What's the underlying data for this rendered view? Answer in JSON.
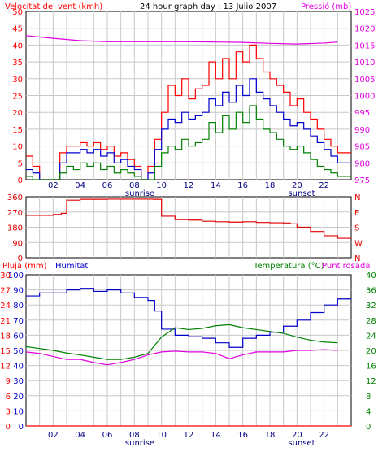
{
  "colors": {
    "background": "#ffffff",
    "grid": "#c8c8c8",
    "frame": "#000000",
    "wind_speed": "#ff0000",
    "wind_avg": "#0000cc",
    "wind_gust": "#008000",
    "pressure": "#e000e0",
    "direction": "#e00000",
    "rain": "#ff0000",
    "humidity": "#0000cc",
    "temperature": "#008000",
    "dewpoint": "#e000e0"
  },
  "header": {
    "wind_label": "Velocitat del vent (kmh)",
    "title": "24 hour graph day : 13 Julio 2007",
    "pressure_label": "Pressió (mb)"
  },
  "x_axis": {
    "hour_labels": [
      "02",
      "04",
      "06",
      "08",
      "10",
      "12",
      "14",
      "16",
      "18",
      "20",
      "22"
    ],
    "sunrise_label": "sunrise",
    "sunset_label": "sunset"
  },
  "chart_data": [
    {
      "type": "line",
      "name": "wind",
      "xlabel": "",
      "ylabel": "Velocitat del vent (kmh)",
      "y2label": "Pressió (mb)",
      "xlim": [
        0,
        24
      ],
      "ylim": [
        0,
        50
      ],
      "y2lim": [
        975,
        1025
      ],
      "y_ticks": [
        0,
        5,
        10,
        15,
        20,
        25,
        30,
        35,
        40,
        45,
        50
      ],
      "y2_ticks": [
        975,
        980,
        985,
        990,
        995,
        1000,
        1005,
        1010,
        1015,
        1020,
        1025
      ],
      "grid": true,
      "series": [
        {
          "key": "speed_max",
          "axis": "left",
          "x": [
            0,
            0.5,
            1,
            1.5,
            2,
            2.5,
            3,
            3.5,
            4,
            4.5,
            5,
            5.5,
            6,
            6.5,
            7,
            7.5,
            8,
            8.5,
            9,
            9.5,
            10,
            10.5,
            11,
            11.5,
            12,
            12.5,
            13,
            13.5,
            14,
            14.5,
            15,
            15.5,
            16,
            16.5,
            17,
            17.5,
            18,
            18.5,
            19,
            19.5,
            20,
            20.5,
            21,
            21.5,
            22,
            22.5,
            23
          ],
          "values": [
            7,
            4,
            0,
            0,
            0,
            8,
            10,
            10,
            11,
            10,
            11,
            9,
            10,
            7,
            8,
            6,
            4,
            0,
            4,
            12,
            20,
            28,
            25,
            30,
            24,
            27,
            28,
            35,
            30,
            36,
            30,
            38,
            35,
            40,
            36,
            32,
            30,
            28,
            26,
            22,
            24,
            20,
            18,
            15,
            12,
            10,
            8
          ]
        },
        {
          "key": "speed_avg",
          "axis": "left",
          "x": [
            0,
            0.5,
            1,
            1.5,
            2,
            2.5,
            3,
            3.5,
            4,
            4.5,
            5,
            5.5,
            6,
            6.5,
            7,
            7.5,
            8,
            8.5,
            9,
            9.5,
            10,
            10.5,
            11,
            11.5,
            12,
            12.5,
            13,
            13.5,
            14,
            14.5,
            15,
            15.5,
            16,
            16.5,
            17,
            17.5,
            18,
            18.5,
            19,
            19.5,
            20,
            20.5,
            21,
            21.5,
            22,
            22.5,
            23
          ],
          "values": [
            3,
            2,
            0,
            0,
            0,
            5,
            8,
            8,
            9,
            8,
            9,
            7,
            8,
            5,
            6,
            4,
            3,
            0,
            2,
            9,
            15,
            18,
            17,
            20,
            18,
            19,
            20,
            24,
            22,
            26,
            23,
            28,
            25,
            30,
            26,
            24,
            22,
            20,
            18,
            16,
            17,
            15,
            13,
            11,
            9,
            7,
            5
          ]
        },
        {
          "key": "speed_min",
          "axis": "left",
          "x": [
            0,
            0.5,
            1,
            1.5,
            2,
            2.5,
            3,
            3.5,
            4,
            4.5,
            5,
            5.5,
            6,
            6.5,
            7,
            7.5,
            8,
            8.5,
            9,
            9.5,
            10,
            10.5,
            11,
            11.5,
            12,
            12.5,
            13,
            13.5,
            14,
            14.5,
            15,
            15.5,
            16,
            16.5,
            17,
            17.5,
            18,
            18.5,
            19,
            19.5,
            20,
            20.5,
            21,
            21.5,
            22,
            22.5,
            23
          ],
          "values": [
            1,
            0,
            0,
            0,
            0,
            2,
            4,
            3,
            5,
            4,
            5,
            3,
            4,
            2,
            3,
            2,
            1,
            0,
            0,
            4,
            8,
            10,
            9,
            12,
            10,
            11,
            12,
            17,
            14,
            19,
            15,
            20,
            17,
            22,
            18,
            15,
            14,
            12,
            10,
            9,
            10,
            8,
            6,
            4,
            3,
            2,
            1
          ]
        },
        {
          "key": "pressure",
          "axis": "right",
          "x": [
            0,
            2,
            4,
            6,
            8,
            10,
            12,
            14,
            16,
            18,
            20,
            22,
            23
          ],
          "values": [
            1017.8,
            1017,
            1016.3,
            1016,
            1016,
            1016,
            1016,
            1015.9,
            1015.8,
            1015.5,
            1015.3,
            1015.6,
            1015.9
          ]
        }
      ]
    },
    {
      "type": "line",
      "name": "direction",
      "xlim": [
        0,
        24
      ],
      "ylim": [
        0,
        360
      ],
      "y_ticks": [
        0,
        90,
        180,
        270,
        360
      ],
      "y2_ticks": [
        "N",
        "W",
        "S",
        "E",
        "N"
      ],
      "grid": true,
      "series": [
        {
          "key": "direction",
          "x": [
            0,
            1,
            2,
            2.6,
            3,
            4,
            5,
            6,
            7,
            8,
            9,
            9.4,
            10,
            11,
            12,
            13,
            14,
            15,
            16,
            17,
            18,
            19,
            19.5,
            20,
            21,
            22,
            23
          ],
          "values": [
            250,
            250,
            255,
            262,
            340,
            345,
            345,
            346,
            346,
            346,
            346,
            345,
            245,
            225,
            222,
            215,
            212,
            210,
            212,
            208,
            206,
            205,
            200,
            180,
            155,
            130,
            115
          ]
        }
      ]
    },
    {
      "type": "line",
      "name": "humidity-temperature",
      "header_left": "Pluja (mm)",
      "header_humidity": "Humitat",
      "header_temp": "Temperatura (°C)",
      "header_dew": "Punt rosada",
      "xlim": [
        0,
        24
      ],
      "humidity_ylim": [
        0,
        100
      ],
      "rain_ylim": [
        0,
        30
      ],
      "temp_ylim": [
        0,
        40
      ],
      "humidity_ticks": [
        0,
        10,
        20,
        30,
        40,
        50,
        60,
        70,
        80,
        90,
        100
      ],
      "rain_ticks": [
        0,
        3,
        6,
        9,
        12,
        15,
        18,
        21,
        24,
        27,
        30
      ],
      "temp_ticks": [
        0,
        4,
        8,
        12,
        16,
        20,
        24,
        28,
        32,
        36,
        40
      ],
      "grid": true,
      "series": [
        {
          "key": "humidity",
          "axis": "humidity",
          "x": [
            0,
            1,
            2,
            3,
            4,
            5,
            6,
            7,
            8,
            9,
            9.5,
            10,
            11,
            12,
            13,
            14,
            15,
            16,
            17,
            18,
            19,
            20,
            21,
            22,
            23
          ],
          "values": [
            86,
            88,
            88,
            90,
            91,
            89,
            90,
            88,
            85,
            83,
            76,
            64,
            60,
            59,
            58,
            55,
            52,
            58,
            60,
            62,
            66,
            70,
            75,
            80,
            84
          ]
        },
        {
          "key": "temperature",
          "axis": "temp",
          "x": [
            0,
            1,
            2,
            3,
            4,
            5,
            6,
            7,
            8,
            9,
            10,
            11,
            12,
            13,
            14,
            15,
            16,
            17,
            18,
            19,
            20,
            21,
            22,
            23
          ],
          "values": [
            21,
            20.5,
            20,
            19.3,
            18.8,
            18.2,
            17.6,
            17.6,
            18.2,
            19.2,
            23.5,
            26,
            25.5,
            25.8,
            26.5,
            26.8,
            26,
            25.5,
            25,
            24.5,
            23.5,
            22.7,
            22.2,
            22
          ]
        },
        {
          "key": "dewpoint",
          "axis": "temp",
          "x": [
            0,
            1,
            2,
            3,
            4,
            5,
            6,
            7,
            8,
            9,
            10,
            11,
            12,
            13,
            14,
            15,
            16,
            17,
            18,
            19,
            20,
            21,
            22,
            23
          ],
          "values": [
            19.6,
            19.2,
            18.4,
            17.6,
            17.6,
            16.8,
            16.2,
            16.8,
            17.6,
            18.8,
            19.6,
            19.8,
            19.6,
            19.6,
            19.2,
            17.8,
            18.8,
            19.6,
            19.6,
            19.6,
            20.0,
            20.0,
            20.2,
            20.0
          ]
        },
        {
          "key": "rain",
          "axis": "rain",
          "x": [
            0,
            24
          ],
          "values": [
            0,
            0
          ]
        }
      ]
    }
  ]
}
